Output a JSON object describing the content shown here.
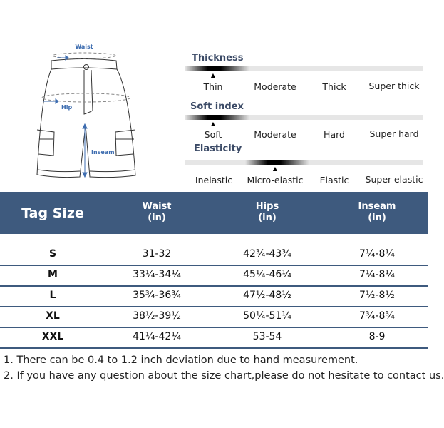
{
  "diagram": {
    "waist_label": "Waist",
    "hip_label": "Hip",
    "inseam_label": "Inseam",
    "accent_color": "#3e6db0"
  },
  "scales": [
    {
      "title": "Thickness",
      "options": [
        "Thin",
        "Moderate",
        "Thick",
        "Super thick"
      ],
      "selected_index": 0
    },
    {
      "title": "Soft index",
      "options": [
        "Soft",
        "Moderate",
        "Hard",
        "Super hard"
      ],
      "selected_index": 0
    },
    {
      "title": "Elasticity",
      "options": [
        "Inelastic",
        "Micro-elastic",
        "Elastic",
        "Super-elastic"
      ],
      "selected_index": 1
    }
  ],
  "table": {
    "header_color": "#3e5a7e",
    "headers": [
      {
        "label": "Tag Size",
        "unit": ""
      },
      {
        "label": "Waist",
        "unit": "(in)"
      },
      {
        "label": "Hips",
        "unit": "(in)"
      },
      {
        "label": "Inseam",
        "unit": "(in)"
      }
    ],
    "rows": [
      [
        "S",
        "31-32",
        "42¾-43¾",
        "7¼-8¼"
      ],
      [
        "M",
        "33¼-34¼",
        "45¼-46¼",
        "7¼-8¼"
      ],
      [
        "L",
        "35¾-36¾",
        "47½-48½",
        "7½-8½"
      ],
      [
        "XL",
        "38½-39½",
        "50¼-51¼",
        "7¾-8¾"
      ],
      [
        "XXL",
        "41¼-42¼",
        "53-54",
        "8-9"
      ]
    ]
  },
  "notes": [
    "1. There can be 0.4 to 1.2 inch deviation due to hand measurement.",
    "2. If you have any question about the size chart,please do not hesitate to contact us."
  ]
}
